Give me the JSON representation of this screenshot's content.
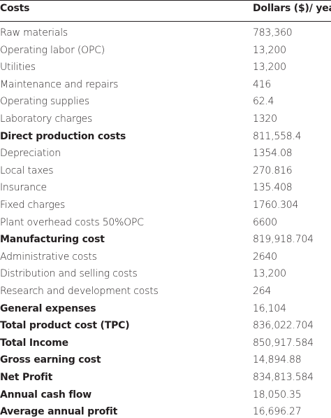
{
  "table": {
    "header": [
      "Costs",
      "Dollars ($)/ year"
    ],
    "rows": [
      {
        "cost": "Raw materials",
        "value": "783,360",
        "bold": false
      },
      {
        "cost": "Operating labor (OPC)",
        "value": "13,200",
        "bold": false
      },
      {
        "cost": "Utilities",
        "value": "13,200",
        "bold": false
      },
      {
        "cost": "Maintenance and repairs",
        "value": "416",
        "bold": false
      },
      {
        "cost": "Operating supplies",
        "value": "62.4",
        "bold": false
      },
      {
        "cost": "Laboratory charges",
        "value": "1320",
        "bold": false
      },
      {
        "cost": "Direct production costs",
        "value": "811,558.4",
        "bold": true
      },
      {
        "cost": "Depreciation",
        "value": "1354.08",
        "bold": false
      },
      {
        "cost": "Local taxes",
        "value": "270.816",
        "bold": false
      },
      {
        "cost": "Insurance",
        "value": "135.408",
        "bold": false
      },
      {
        "cost": "Fixed charges",
        "value": "1760.304",
        "bold": false
      },
      {
        "cost": "Plant overhead costs 50%OPC",
        "value": "6600",
        "bold": false
      },
      {
        "cost": "Manufacturing cost",
        "value": "819,918.704",
        "bold": true
      },
      {
        "cost": "Administrative costs",
        "value": "2640",
        "bold": false
      },
      {
        "cost": "Distribution and selling costs",
        "value": "13,200",
        "bold": false
      },
      {
        "cost": "Research and development costs",
        "value": "264",
        "bold": false
      },
      {
        "cost": "General expenses",
        "value": "16,104",
        "bold": true
      },
      {
        "cost": "Total product cost (TPC)",
        "value": "836,022.704",
        "bold": true
      },
      {
        "cost": "Total Income",
        "value": "850,917.584",
        "bold": true
      },
      {
        "cost": "Gross earning cost",
        "value": "14,894.88",
        "bold": true
      },
      {
        "cost": "Net Profit",
        "value": "834,813.584",
        "bold": true
      },
      {
        "cost": "Annual cash flow",
        "value": "18,050.35",
        "bold": true
      },
      {
        "cost": "Average annual profit",
        "value": "16,696.27",
        "bold": true
      }
    ]
  }
}
